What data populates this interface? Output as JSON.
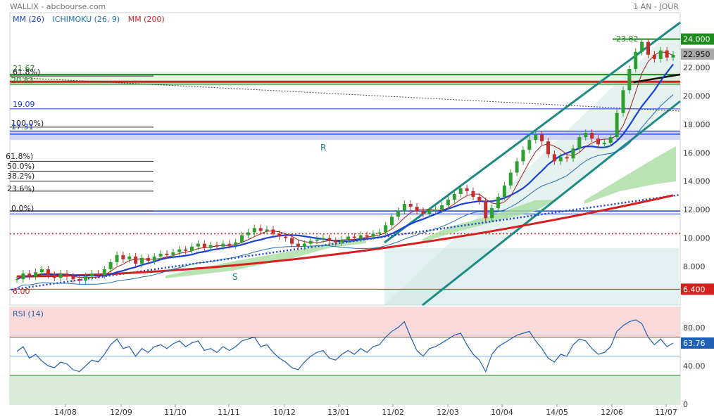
{
  "header": {
    "title": "WALLIX - abcbourse.com",
    "period": "1 AN - JOUR"
  },
  "legend": [
    {
      "label": "MM (26)",
      "color": "#1a3fd6"
    },
    {
      "label": "ICHIMOKU (26, 9)",
      "color": "#1f6fb5"
    },
    {
      "label": "MM (200)",
      "color": "#d62020"
    }
  ],
  "chart_data": [
    {
      "type": "candlestick",
      "title": "WALLIX",
      "x_ticks": [
        "14/08",
        "12/09",
        "11/10",
        "11/11",
        "10/12",
        "13/01",
        "11/02",
        "12/03",
        "10/04",
        "14/05",
        "12/06",
        "11/07"
      ],
      "y_ticks": [
        "8.000",
        "10.000",
        "12.000",
        "14.000",
        "16.000",
        "18.000",
        "20.000",
        "22.000"
      ],
      "ylim": [
        5.5,
        25.5
      ],
      "last_price": "22.950",
      "price_labels": [
        {
          "value": "24.000",
          "color": "#1f8a1f"
        },
        {
          "value": "6.400",
          "color": "#d62020"
        }
      ],
      "annotations": {
        "high": "23.82",
        "low": "6.00",
        "level_a": "21.67",
        "level_b": "20.83",
        "level_c": "19.09",
        "level_d": "17.31",
        "fib_top": "61.8%)",
        "fib_1": "100.0%)",
        "fib_2": "61.8%)",
        "fib_3": "50.0%)",
        "fib_4": "38.2%)",
        "fib_5": "23.6%)",
        "fib_6": "0.0%)",
        "resistance": "R",
        "support": "S"
      },
      "close_series": [
        7.1,
        7.5,
        7.3,
        7.6,
        7.8,
        7.4,
        7.2,
        7.5,
        7.3,
        7.1,
        7.0,
        7.3,
        7.5,
        7.4,
        7.8,
        8.3,
        8.8,
        8.5,
        8.7,
        8.2,
        8.6,
        8.4,
        8.7,
        8.9,
        8.8,
        9.0,
        9.2,
        9.1,
        9.4,
        9.6,
        9.3,
        9.5,
        9.4,
        9.6,
        9.5,
        9.7,
        10.2,
        10.4,
        10.7,
        10.5,
        10.6,
        10.3,
        10.1,
        10.0,
        9.6,
        9.4,
        9.6,
        9.8,
        9.9,
        10.0,
        9.8,
        9.7,
        9.9,
        10.1,
        10.0,
        10.2,
        10.1,
        10.3,
        10.4,
        10.9,
        11.5,
        11.9,
        12.4,
        12.2,
        11.9,
        11.7,
        11.9,
        12.0,
        12.3,
        12.7,
        13.1,
        13.5,
        13.3,
        12.9,
        12.6,
        11.4,
        12.1,
        12.9,
        13.7,
        14.6,
        15.4,
        16.2,
        16.9,
        17.3,
        16.8,
        15.9,
        15.4,
        15.7,
        15.6,
        16.3,
        17.1,
        17.4,
        17.0,
        16.6,
        16.7,
        17.1,
        18.8,
        20.4,
        21.9,
        23.1,
        23.8,
        22.9,
        22.6,
        23.2,
        22.7,
        22.9
      ],
      "rsi": {
        "label": "RSI (14)",
        "value": "63.76",
        "ticks": [
          "80.00",
          "40.00",
          "0"
        ],
        "overbought": 70,
        "oversold": 30,
        "series": [
          55,
          60,
          48,
          52,
          45,
          40,
          38,
          44,
          42,
          36,
          34,
          40,
          46,
          44,
          52,
          62,
          68,
          58,
          60,
          50,
          58,
          54,
          60,
          62,
          58,
          63,
          66,
          60,
          64,
          66,
          56,
          58,
          54,
          60,
          56,
          60,
          66,
          68,
          70,
          60,
          62,
          54,
          48,
          44,
          38,
          36,
          44,
          50,
          54,
          56,
          48,
          46,
          52,
          56,
          52,
          58,
          54,
          60,
          62,
          70,
          76,
          80,
          86,
          70,
          56,
          50,
          58,
          60,
          64,
          68,
          72,
          74,
          62,
          52,
          46,
          34,
          52,
          60,
          64,
          68,
          72,
          74,
          76,
          66,
          58,
          48,
          44,
          52,
          50,
          62,
          68,
          66,
          58,
          52,
          54,
          60,
          76,
          82,
          86,
          88,
          84,
          70,
          62,
          68,
          60,
          63.76
        ]
      }
    }
  ]
}
